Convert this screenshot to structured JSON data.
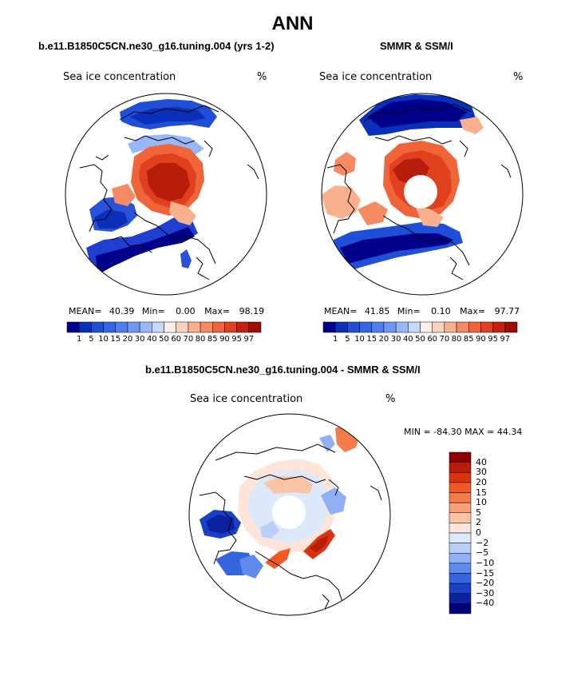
{
  "title": "ANN",
  "panels": [
    {
      "title": "b.e11.B1850C5CN.ne30_g16.tuning.004 (yrs 1-2)",
      "subtitle": "Sea ice concentration",
      "units": "%",
      "mean_label": "MEAN=",
      "mean": "40.39",
      "min_label": "Min=",
      "min": "0.00",
      "max_label": "Max=",
      "max": "98.19"
    },
    {
      "title": "SMMR & SSM/I",
      "subtitle": "Sea ice concentration",
      "units": "%",
      "mean_label": "MEAN=",
      "mean": "41.85",
      "min_label": "Min=",
      "min": "0.10",
      "max_label": "Max=",
      "max": "97.77"
    }
  ],
  "diff": {
    "title": "b.e11.B1850C5CN.ne30_g16.tuning.004 - SMMR & SSM/I",
    "subtitle": "Sea ice concentration",
    "units": "%",
    "minmax": "MIN = -84.30 MAX =  44.34"
  },
  "chart_data": [
    {
      "type": "heatmap",
      "projection": "north polar stereographic",
      "title": "b.e11.B1850C5CN.ne30_g16.tuning.004 (yrs 1-2)",
      "variable": "Sea ice concentration",
      "units": "%",
      "mean": 40.39,
      "min": 0.0,
      "max": 98.19,
      "colorbar": {
        "levels": [
          "1",
          "5",
          "10",
          "15",
          "20",
          "30",
          "40",
          "50",
          "60",
          "70",
          "80",
          "85",
          "90",
          "95",
          "97"
        ],
        "colors": [
          "#00008b",
          "#0a2fb8",
          "#1f4fd6",
          "#3366e6",
          "#4d7ff0",
          "#6f98f5",
          "#98b7f8",
          "#c6d9fb",
          "#fbefe8",
          "#fbd2bd",
          "#f8b08f",
          "#f58b62",
          "#f0643a",
          "#e0401e",
          "#c42010",
          "#9c0e06"
        ]
      }
    },
    {
      "type": "heatmap",
      "projection": "north polar stereographic",
      "title": "SMMR & SSM/I",
      "variable": "Sea ice concentration",
      "units": "%",
      "mean": 41.85,
      "min": 0.1,
      "max": 97.77,
      "colorbar": {
        "levels": [
          "1",
          "5",
          "10",
          "15",
          "20",
          "30",
          "40",
          "50",
          "60",
          "70",
          "80",
          "85",
          "90",
          "95",
          "97"
        ],
        "colors": [
          "#00008b",
          "#0a2fb8",
          "#1f4fd6",
          "#3366e6",
          "#4d7ff0",
          "#6f98f5",
          "#98b7f8",
          "#c6d9fb",
          "#fbefe8",
          "#fbd2bd",
          "#f8b08f",
          "#f58b62",
          "#f0643a",
          "#e0401e",
          "#c42010",
          "#9c0e06"
        ]
      }
    },
    {
      "type": "heatmap",
      "projection": "north polar stereographic",
      "title": "b.e11.B1850C5CN.ne30_g16.tuning.004 - SMMR & SSM/I",
      "variable": "Sea ice concentration",
      "units": "%",
      "min": -84.3,
      "max": 44.34,
      "colorbar": {
        "orientation": "vertical",
        "levels": [
          "40",
          "30",
          "20",
          "15",
          "10",
          "5",
          "2",
          "0",
          "−2",
          "−5",
          "−10",
          "−15",
          "−20",
          "−30",
          "−40"
        ],
        "colors": [
          "#8b0000",
          "#b81d0c",
          "#d8340f",
          "#ef5a24",
          "#f47c48",
          "#f7a079",
          "#fbc4a4",
          "#fde6d9",
          "#dde8fb",
          "#b9cff9",
          "#8fb0f3",
          "#5f8bec",
          "#3564df",
          "#1a41c4",
          "#0a22a0",
          "#00007d"
        ]
      }
    }
  ]
}
